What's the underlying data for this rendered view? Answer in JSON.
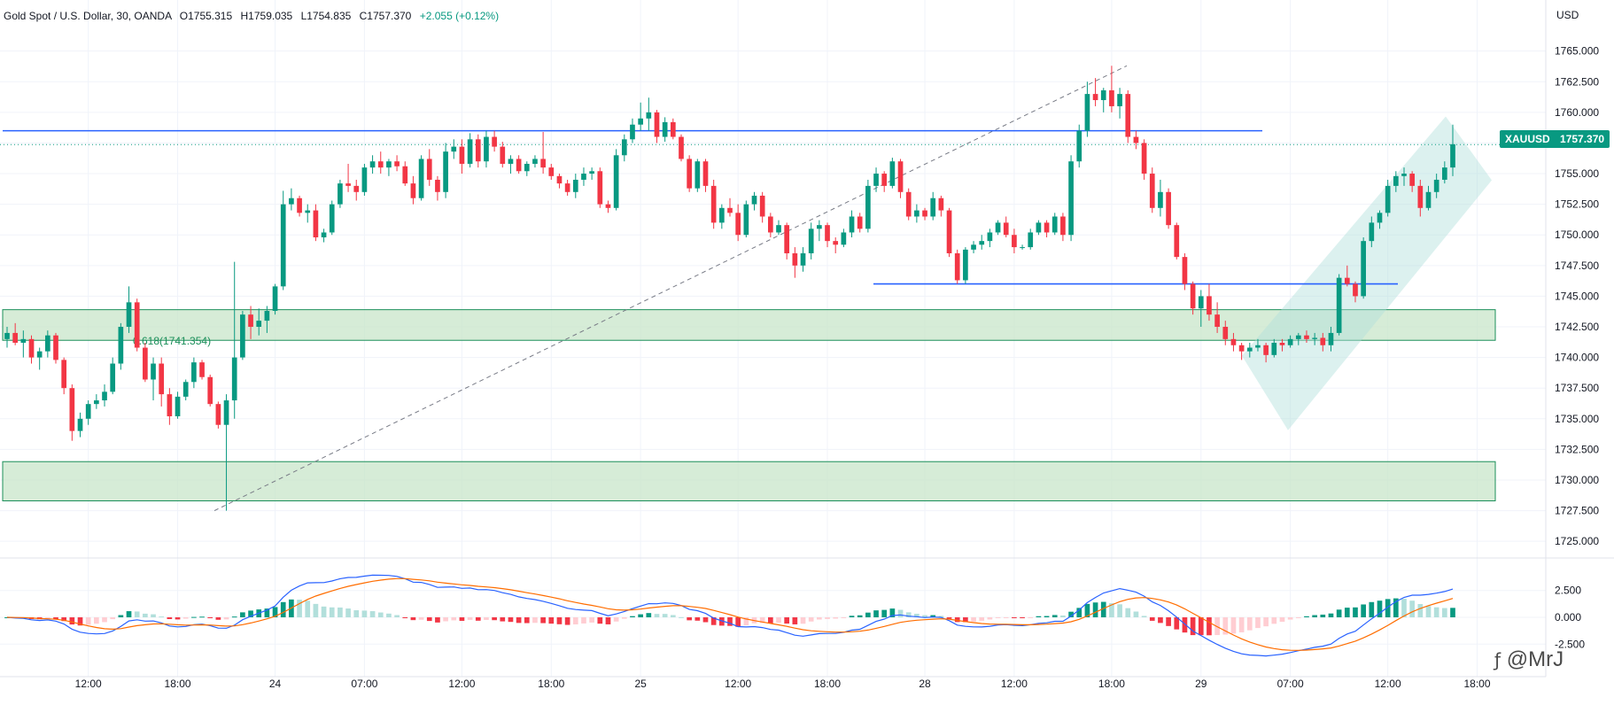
{
  "header": {
    "symbol": "Gold Spot / U.S. Dollar, 30, OANDA",
    "open": "O1755.315",
    "high": "H1759.035",
    "low": "L1754.835",
    "close": "C1757.370",
    "change": "+2.055 (+0.12%)"
  },
  "currency": "USD",
  "price_tag": {
    "symbol": "XAUUSD",
    "price": "1757.370"
  },
  "watermark": "@MrJ",
  "colors": {
    "up": "#089981",
    "down": "#f23645",
    "macd": "#2962ff",
    "signal": "#ff6d00",
    "zone": "#c8e6c9",
    "hist_up_light": "#b2dfdb",
    "hist_down_light": "#ffcdd2"
  },
  "chart_data": [
    {
      "type": "candlestick",
      "ylim": [
        1724,
        1767
      ],
      "y_ticks": [
        "1765.000",
        "1762.500",
        "1760.000",
        "1757.500",
        "1755.000",
        "1752.500",
        "1750.000",
        "1747.500",
        "1745.000",
        "1742.500",
        "1740.000",
        "1737.500",
        "1735.000",
        "1732.500",
        "1730.000",
        "1727.500",
        "1725.000"
      ],
      "x_ticks": [
        "12:00",
        "18:00",
        "24",
        "07:00",
        "12:00",
        "18:00",
        "25",
        "12:00",
        "18:00",
        "28",
        "12:00",
        "18:00",
        "29",
        "07:00",
        "12:00",
        "18:00"
      ],
      "current_price": 1757.37,
      "horizontal_lines": [
        1758.5,
        1746.0
      ],
      "zones": [
        [
          1741.4,
          1743.9
        ],
        [
          1728.3,
          1731.5
        ]
      ],
      "fib_label": "0.618(1741.354)",
      "trend_line": {
        "from": 1727.5,
        "to": 1763.8
      },
      "candles": [
        [
          1741.5,
          1742.5,
          1740.8,
          1742.0
        ],
        [
          1742.0,
          1742.8,
          1741.0,
          1741.2
        ],
        [
          1741.2,
          1742.2,
          1740.0,
          1741.5
        ],
        [
          1741.5,
          1741.8,
          1739.5,
          1740.0
        ],
        [
          1740.0,
          1740.8,
          1739.0,
          1740.5
        ],
        [
          1740.5,
          1742.2,
          1740.0,
          1741.8
        ],
        [
          1741.8,
          1742.0,
          1739.5,
          1739.8
        ],
        [
          1739.8,
          1740.0,
          1737.0,
          1737.5
        ],
        [
          1737.5,
          1737.8,
          1733.2,
          1734.0
        ],
        [
          1734.0,
          1735.5,
          1733.5,
          1735.0
        ],
        [
          1735.0,
          1736.5,
          1734.5,
          1736.2
        ],
        [
          1736.2,
          1737.0,
          1735.8,
          1736.5
        ],
        [
          1736.5,
          1737.8,
          1736.0,
          1737.2
        ],
        [
          1737.2,
          1740.0,
          1737.0,
          1739.5
        ],
        [
          1739.5,
          1742.8,
          1739.0,
          1742.5
        ],
        [
          1742.5,
          1745.8,
          1742.0,
          1744.5
        ],
        [
          1744.5,
          1744.8,
          1740.5,
          1740.8
        ],
        [
          1740.8,
          1741.2,
          1738.0,
          1738.2
        ],
        [
          1738.2,
          1740.0,
          1736.5,
          1739.5
        ],
        [
          1739.5,
          1740.0,
          1736.0,
          1737.0
        ],
        [
          1737.0,
          1737.5,
          1734.5,
          1735.2
        ],
        [
          1735.2,
          1737.2,
          1735.0,
          1736.8
        ],
        [
          1736.8,
          1738.2,
          1736.5,
          1738.0
        ],
        [
          1738.0,
          1740.0,
          1737.5,
          1739.6
        ],
        [
          1739.6,
          1739.8,
          1738.2,
          1738.4
        ],
        [
          1738.4,
          1738.6,
          1736.0,
          1736.2
        ],
        [
          1736.2,
          1736.4,
          1734.2,
          1734.5
        ],
        [
          1734.5,
          1737.0,
          1727.5,
          1736.5
        ],
        [
          1736.5,
          1747.8,
          1735.0,
          1740.0
        ],
        [
          1740.0,
          1743.8,
          1739.8,
          1743.5
        ],
        [
          1743.5,
          1744.2,
          1741.5,
          1742.5
        ],
        [
          1742.5,
          1744.0,
          1741.8,
          1743.0
        ],
        [
          1743.0,
          1744.2,
          1742.0,
          1743.8
        ],
        [
          1743.8,
          1746.0,
          1743.5,
          1745.8
        ],
        [
          1745.8,
          1753.6,
          1745.5,
          1752.5
        ],
        [
          1752.5,
          1753.8,
          1752.0,
          1753.0
        ],
        [
          1753.0,
          1753.2,
          1751.5,
          1751.8
        ],
        [
          1751.8,
          1752.5,
          1751.0,
          1752.0
        ],
        [
          1752.0,
          1752.5,
          1749.5,
          1749.8
        ],
        [
          1749.8,
          1750.5,
          1749.4,
          1750.2
        ],
        [
          1750.2,
          1752.8,
          1750.0,
          1752.5
        ],
        [
          1752.5,
          1754.5,
          1752.2,
          1754.2
        ],
        [
          1754.2,
          1755.8,
          1753.5,
          1754.0
        ],
        [
          1754.0,
          1754.5,
          1752.8,
          1753.5
        ],
        [
          1753.5,
          1755.8,
          1753.2,
          1755.5
        ],
        [
          1755.5,
          1756.5,
          1755.0,
          1756.0
        ],
        [
          1756.0,
          1756.8,
          1755.0,
          1755.5
        ],
        [
          1755.5,
          1756.2,
          1754.8,
          1756.0
        ],
        [
          1756.0,
          1756.5,
          1755.2,
          1755.6
        ],
        [
          1755.6,
          1756.0,
          1754.0,
          1754.2
        ],
        [
          1754.2,
          1754.8,
          1752.5,
          1753.0
        ],
        [
          1753.0,
          1756.5,
          1752.8,
          1756.2
        ],
        [
          1756.2,
          1757.0,
          1754.0,
          1754.5
        ],
        [
          1754.5,
          1754.8,
          1752.8,
          1753.5
        ],
        [
          1753.5,
          1757.5,
          1753.0,
          1756.8
        ],
        [
          1756.8,
          1757.8,
          1756.2,
          1757.2
        ],
        [
          1757.2,
          1757.8,
          1755.0,
          1755.8
        ],
        [
          1755.8,
          1758.3,
          1755.5,
          1757.8
        ],
        [
          1757.8,
          1758.2,
          1755.5,
          1756.0
        ],
        [
          1756.0,
          1758.5,
          1755.5,
          1758.0
        ],
        [
          1758.0,
          1758.5,
          1756.8,
          1757.2
        ],
        [
          1757.2,
          1757.6,
          1755.5,
          1755.8
        ],
        [
          1755.8,
          1756.5,
          1755.0,
          1756.2
        ],
        [
          1756.2,
          1756.5,
          1755.0,
          1755.2
        ],
        [
          1755.2,
          1756.0,
          1754.8,
          1755.8
        ],
        [
          1755.8,
          1756.5,
          1755.5,
          1756.2
        ],
        [
          1756.2,
          1758.4,
          1755.0,
          1755.5
        ],
        [
          1755.5,
          1755.8,
          1754.5,
          1754.8
        ],
        [
          1754.8,
          1755.0,
          1753.8,
          1754.2
        ],
        [
          1754.2,
          1754.5,
          1753.2,
          1753.5
        ],
        [
          1753.5,
          1755.0,
          1753.0,
          1754.5
        ],
        [
          1754.5,
          1755.5,
          1754.0,
          1755.0
        ],
        [
          1755.0,
          1755.5,
          1754.5,
          1755.2
        ],
        [
          1755.2,
          1755.5,
          1752.2,
          1752.5
        ],
        [
          1752.5,
          1752.8,
          1751.8,
          1752.2
        ],
        [
          1752.2,
          1757.0,
          1752.0,
          1756.5
        ],
        [
          1756.5,
          1758.2,
          1756.0,
          1757.8
        ],
        [
          1757.8,
          1759.5,
          1757.5,
          1759.0
        ],
        [
          1759.0,
          1760.8,
          1758.5,
          1759.5
        ],
        [
          1759.5,
          1761.2,
          1758.5,
          1760.0
        ],
        [
          1760.0,
          1760.2,
          1757.5,
          1758.0
        ],
        [
          1758.0,
          1759.6,
          1757.6,
          1759.2
        ],
        [
          1759.2,
          1759.5,
          1757.8,
          1758.0
        ],
        [
          1758.0,
          1758.2,
          1756.0,
          1756.2
        ],
        [
          1756.2,
          1756.5,
          1753.5,
          1753.8
        ],
        [
          1753.8,
          1756.2,
          1753.5,
          1756.0
        ],
        [
          1756.0,
          1756.2,
          1753.5,
          1754.0
        ],
        [
          1754.0,
          1754.5,
          1750.5,
          1751.0
        ],
        [
          1751.0,
          1752.5,
          1750.5,
          1752.2
        ],
        [
          1752.2,
          1753.0,
          1751.5,
          1751.8
        ],
        [
          1751.8,
          1752.5,
          1749.5,
          1750.0
        ],
        [
          1750.0,
          1752.8,
          1749.8,
          1752.5
        ],
        [
          1752.5,
          1753.5,
          1752.0,
          1753.2
        ],
        [
          1753.2,
          1753.5,
          1751.0,
          1751.5
        ],
        [
          1751.5,
          1751.8,
          1749.8,
          1750.2
        ],
        [
          1750.2,
          1751.2,
          1750.0,
          1750.8
        ],
        [
          1750.8,
          1751.0,
          1748.0,
          1748.5
        ],
        [
          1748.5,
          1749.0,
          1746.5,
          1747.5
        ],
        [
          1747.5,
          1749.0,
          1747.0,
          1748.5
        ],
        [
          1748.5,
          1751.0,
          1748.0,
          1750.5
        ],
        [
          1750.5,
          1751.2,
          1749.5,
          1750.8
        ],
        [
          1750.8,
          1751.0,
          1749.0,
          1749.5
        ],
        [
          1749.5,
          1749.8,
          1748.5,
          1749.2
        ],
        [
          1749.2,
          1750.5,
          1749.0,
          1750.2
        ],
        [
          1750.2,
          1752.0,
          1749.8,
          1751.5
        ],
        [
          1751.5,
          1751.8,
          1750.2,
          1750.5
        ],
        [
          1750.5,
          1754.5,
          1750.2,
          1754.0
        ],
        [
          1754.0,
          1755.5,
          1753.5,
          1755.0
        ],
        [
          1755.0,
          1755.2,
          1753.5,
          1754.0
        ],
        [
          1754.0,
          1756.3,
          1753.8,
          1756.0
        ],
        [
          1756.0,
          1756.2,
          1753.0,
          1753.5
        ],
        [
          1753.5,
          1753.8,
          1751.2,
          1751.5
        ],
        [
          1751.5,
          1752.5,
          1751.0,
          1752.0
        ],
        [
          1752.0,
          1752.2,
          1751.2,
          1751.5
        ],
        [
          1751.5,
          1753.5,
          1751.2,
          1753.0
        ],
        [
          1753.0,
          1753.2,
          1751.5,
          1752.0
        ],
        [
          1752.0,
          1752.2,
          1748.2,
          1748.5
        ],
        [
          1748.5,
          1748.8,
          1746.0,
          1746.3
        ],
        [
          1746.3,
          1749.0,
          1746.0,
          1748.8
        ],
        [
          1748.8,
          1749.5,
          1748.5,
          1749.2
        ],
        [
          1749.2,
          1750.0,
          1748.8,
          1749.5
        ],
        [
          1749.5,
          1750.5,
          1749.0,
          1750.2
        ],
        [
          1750.2,
          1751.2,
          1750.0,
          1751.0
        ],
        [
          1751.0,
          1751.5,
          1749.8,
          1750.0
        ],
        [
          1750.0,
          1750.5,
          1748.5,
          1749.0
        ],
        [
          1749.0,
          1749.2,
          1748.8,
          1749.0
        ],
        [
          1749.0,
          1750.5,
          1748.8,
          1750.2
        ],
        [
          1750.2,
          1751.2,
          1750.0,
          1751.0
        ],
        [
          1751.0,
          1751.2,
          1749.8,
          1750.2
        ],
        [
          1750.2,
          1751.8,
          1750.0,
          1751.5
        ],
        [
          1751.5,
          1751.8,
          1749.5,
          1750.0
        ],
        [
          1750.0,
          1756.5,
          1749.5,
          1756.0
        ],
        [
          1756.0,
          1759.0,
          1755.5,
          1758.5
        ],
        [
          1758.5,
          1762.5,
          1758.0,
          1761.5
        ],
        [
          1761.5,
          1762.8,
          1760.5,
          1761.0
        ],
        [
          1761.0,
          1762.0,
          1760.0,
          1761.8
        ],
        [
          1761.8,
          1763.8,
          1760.0,
          1760.5
        ],
        [
          1760.5,
          1762.0,
          1759.5,
          1761.5
        ],
        [
          1761.5,
          1761.8,
          1757.5,
          1758.0
        ],
        [
          1758.0,
          1758.5,
          1757.0,
          1757.5
        ],
        [
          1757.5,
          1757.8,
          1754.5,
          1755.0
        ],
        [
          1755.0,
          1755.5,
          1751.8,
          1752.2
        ],
        [
          1752.2,
          1754.5,
          1751.5,
          1753.5
        ],
        [
          1753.5,
          1753.8,
          1750.5,
          1750.8
        ],
        [
          1750.8,
          1751.0,
          1748.0,
          1748.2
        ],
        [
          1748.2,
          1748.5,
          1745.5,
          1746.0
        ],
        [
          1746.0,
          1746.2,
          1743.5,
          1744.0
        ],
        [
          1744.0,
          1745.5,
          1742.5,
          1745.0
        ],
        [
          1745.0,
          1746.0,
          1743.0,
          1743.5
        ],
        [
          1743.5,
          1744.5,
          1742.0,
          1742.5
        ],
        [
          1742.5,
          1743.0,
          1741.0,
          1741.5
        ],
        [
          1741.5,
          1742.0,
          1740.5,
          1741.0
        ],
        [
          1741.0,
          1741.2,
          1739.8,
          1740.5
        ],
        [
          1740.5,
          1741.2,
          1740.0,
          1740.8
        ],
        [
          1740.8,
          1741.5,
          1740.5,
          1741.0
        ],
        [
          1741.0,
          1741.2,
          1739.6,
          1740.2
        ],
        [
          1740.2,
          1741.5,
          1740.0,
          1741.2
        ],
        [
          1741.2,
          1741.5,
          1740.5,
          1741.0
        ],
        [
          1741.0,
          1741.8,
          1740.8,
          1741.5
        ],
        [
          1741.5,
          1742.0,
          1741.0,
          1741.8
        ],
        [
          1741.8,
          1742.2,
          1741.2,
          1741.5
        ],
        [
          1741.5,
          1742.0,
          1741.0,
          1741.6
        ],
        [
          1741.6,
          1742.0,
          1740.5,
          1741.0
        ],
        [
          1741.0,
          1742.5,
          1740.5,
          1742.0
        ],
        [
          1742.0,
          1746.8,
          1741.8,
          1746.5
        ],
        [
          1746.5,
          1747.5,
          1745.8,
          1746.0
        ],
        [
          1746.0,
          1746.2,
          1744.5,
          1745.0
        ],
        [
          1745.0,
          1749.8,
          1744.8,
          1749.5
        ],
        [
          1749.5,
          1751.5,
          1749.0,
          1751.0
        ],
        [
          1751.0,
          1752.0,
          1750.5,
          1751.8
        ],
        [
          1751.8,
          1754.5,
          1751.5,
          1754.0
        ],
        [
          1754.0,
          1755.2,
          1753.5,
          1754.8
        ],
        [
          1754.8,
          1755.5,
          1754.0,
          1755.0
        ],
        [
          1755.0,
          1755.2,
          1753.5,
          1754.0
        ],
        [
          1754.0,
          1754.5,
          1751.5,
          1752.2
        ],
        [
          1752.2,
          1754.0,
          1752.0,
          1753.5
        ],
        [
          1753.5,
          1755.0,
          1753.0,
          1754.5
        ],
        [
          1754.5,
          1756.0,
          1754.2,
          1755.5
        ],
        [
          1755.5,
          1759.0,
          1754.8,
          1757.4
        ]
      ]
    },
    {
      "type": "macd",
      "ylim": [
        -5.2,
        5.2
      ],
      "y_ticks": [
        "2.500",
        "0.000",
        "-2.500"
      ]
    }
  ]
}
